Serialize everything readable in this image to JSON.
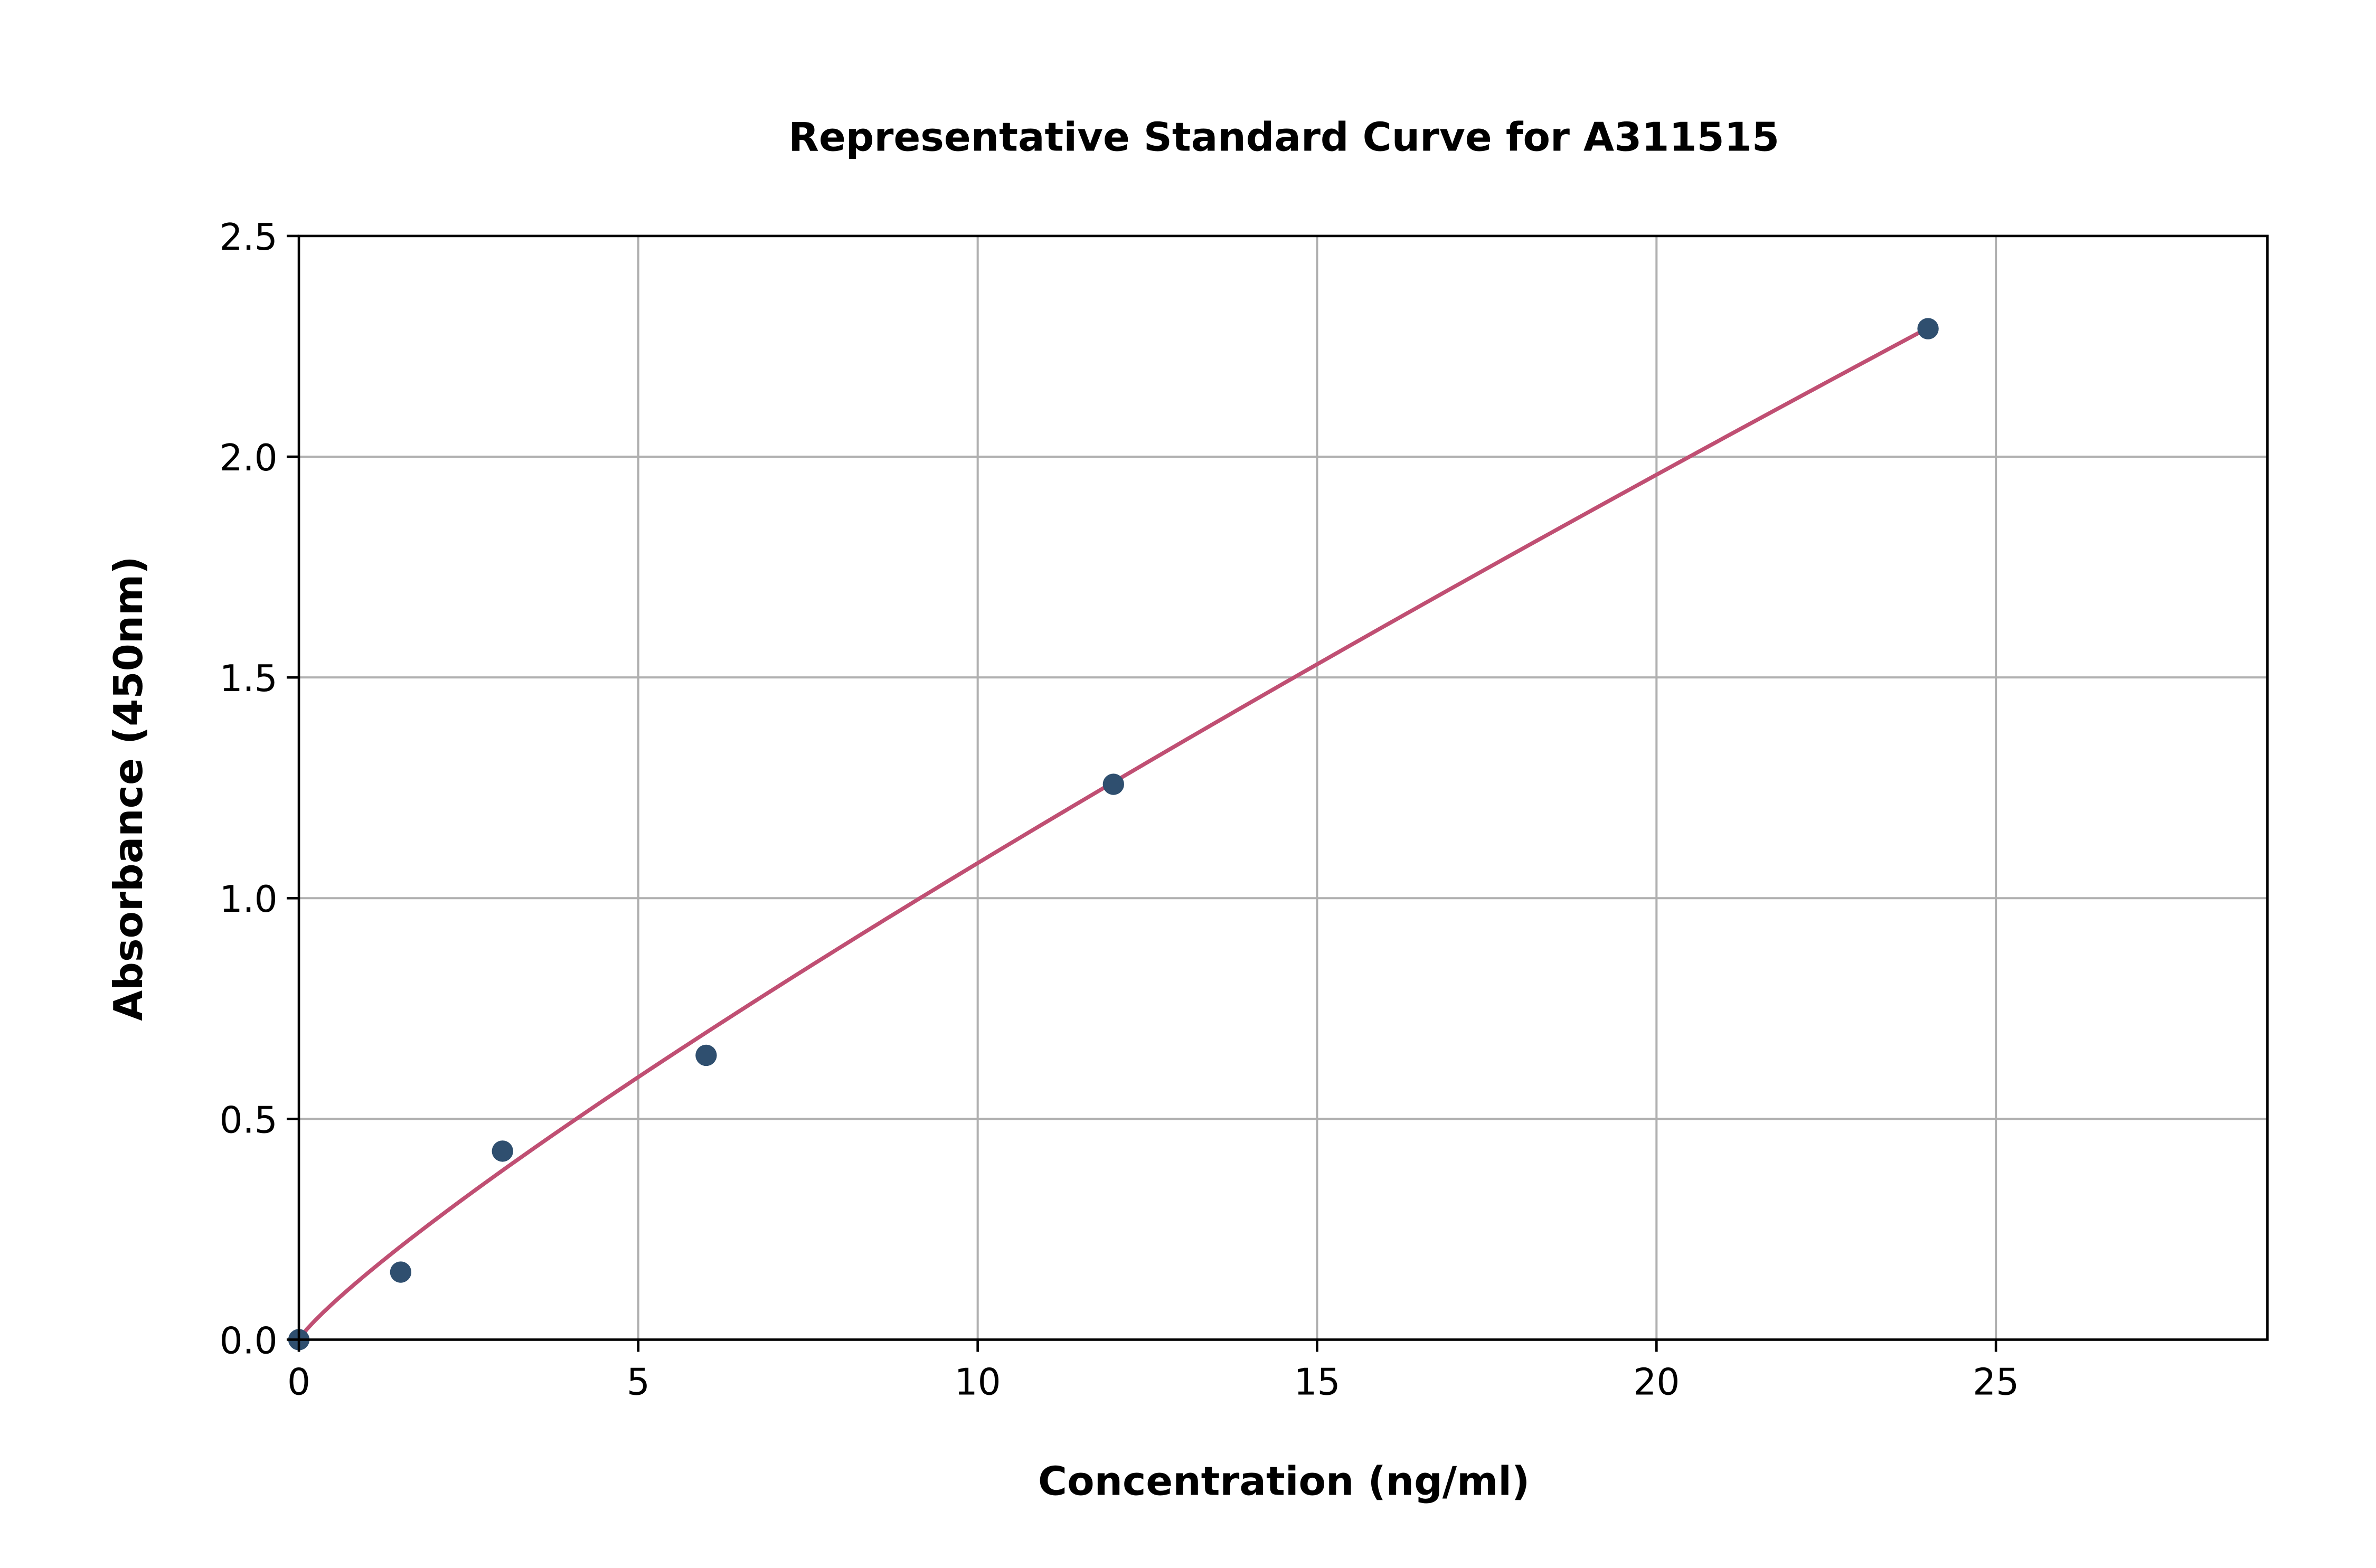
{
  "chart_data": {
    "type": "scatter",
    "title": "Representative Standard Curve for A311515",
    "xlabel": "Concentration (ng/ml)",
    "ylabel": "Absorbance (450nm)",
    "xlim": [
      0,
      29
    ],
    "ylim": [
      0,
      2.5
    ],
    "xticks": [
      "0",
      "5",
      "10",
      "15",
      "20",
      "25"
    ],
    "yticks": [
      "0.0",
      "0.5",
      "1.0",
      "1.5",
      "2.0",
      "2.5"
    ],
    "grid": true,
    "points": [
      {
        "x": 0,
        "y": 0.0
      },
      {
        "x": 1.5,
        "y": 0.153
      },
      {
        "x": 3,
        "y": 0.427
      },
      {
        "x": 6,
        "y": 0.644
      },
      {
        "x": 12,
        "y": 1.258
      },
      {
        "x": 24,
        "y": 2.29
      }
    ],
    "fit_curve": "smooth fitted curve from 0 to 24",
    "colors": {
      "points": "#2f4f6f",
      "curve": "#c04f73",
      "grid": "#b0b0b0"
    }
  }
}
